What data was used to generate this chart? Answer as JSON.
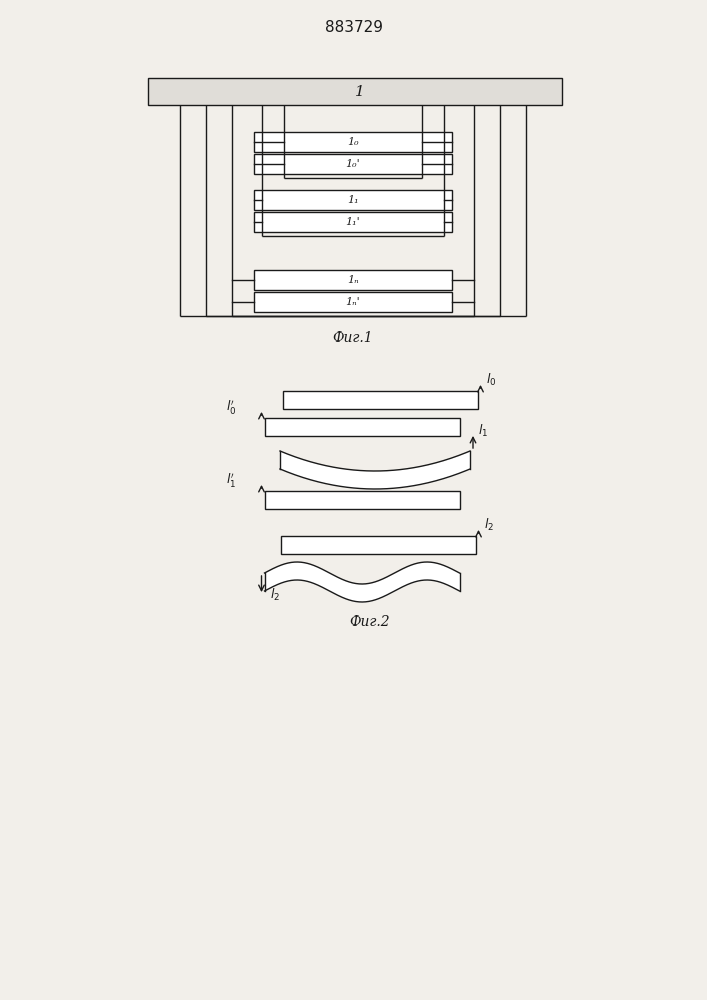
{
  "title": "883729",
  "fig1_caption": "Фиг.1",
  "fig2_caption": "Фиг.2",
  "bg_color": "#f2efea",
  "line_color": "#1a1a1a",
  "rect_fill": "#ffffff",
  "plate_fill": "#e0ddd8"
}
